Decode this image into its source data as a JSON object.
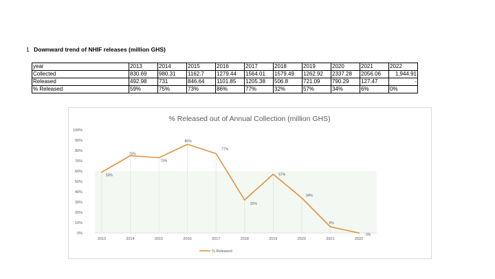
{
  "heading": {
    "number": "1",
    "title": "Downward trend of NHIF releases (million GHS)"
  },
  "table": {
    "rows": [
      {
        "label": "year",
        "cells": [
          "2013",
          "2014",
          "2015",
          "2016",
          "2017",
          "2018",
          "2019",
          "2020",
          "2021",
          "2022"
        ]
      },
      {
        "label": "Collected",
        "cells": [
          "830.69",
          "980.31",
          "1162.7",
          "1279.44",
          "1564.01",
          "1579.49",
          "1262.92",
          "2337.28",
          "2056.06",
          "1,944.91"
        ]
      },
      {
        "label": "Released",
        "cells": [
          "492.98",
          "731",
          "846.64",
          "1101.85",
          "1205.38",
          "506.8",
          "721.09",
          "790.29",
          "127.47",
          "-"
        ]
      },
      {
        "label": "% Released",
        "cells": [
          "59%",
          "75%",
          "73%",
          "86%",
          "77%",
          "32%",
          "57%",
          "34%",
          "6%",
          "0%"
        ]
      }
    ]
  },
  "chart_data": {
    "type": "line",
    "title": "% Released out of Annual Collection (million GHS)",
    "xlabel": "",
    "ylabel": "",
    "categories": [
      "2013",
      "2014",
      "2015",
      "2016",
      "2017",
      "2018",
      "2019",
      "2020",
      "2021",
      "2022"
    ],
    "series": [
      {
        "name": "% Released",
        "values": [
          59,
          75,
          73,
          86,
          77,
          32,
          57,
          34,
          6,
          0
        ],
        "labels": [
          "59%",
          "75%",
          "73%",
          "86%",
          "77%",
          "32%",
          "57%",
          "34%",
          "6%",
          "0%"
        ]
      }
    ],
    "y_ticks": [
      "0%",
      "10%",
      "20%",
      "30%",
      "40%",
      "50%",
      "60%",
      "70%",
      "80%",
      "90%",
      "100%"
    ],
    "ylim": [
      0,
      100
    ],
    "grid": false,
    "legend": "bottom",
    "colors": {
      "line": "#e0933f",
      "band": "#f3f8f3",
      "dropline": "#e3e3e3",
      "axis": "#d9d9d9",
      "text": "#595959"
    }
  }
}
